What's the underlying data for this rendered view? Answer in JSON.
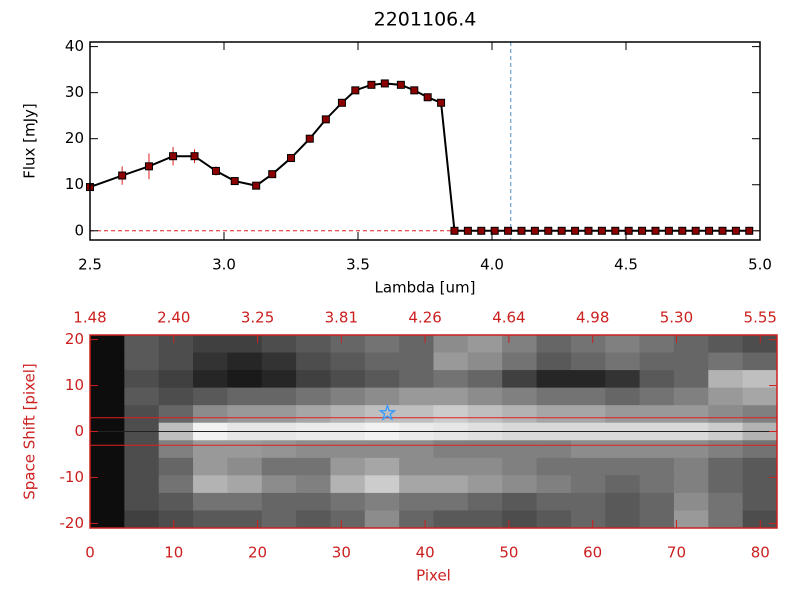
{
  "chart_data": [
    {
      "type": "line",
      "title": "2201106.4",
      "xlabel": "Lambda [um]",
      "ylabel": "Flux [mJy]",
      "xlim": [
        2.5,
        5.0
      ],
      "ylim": [
        -2,
        41
      ],
      "xticks": [
        2.5,
        {
          "value": 3,
          "label": "3.0"
        },
        3.5,
        {
          "value": 4,
          "label": "4.0"
        },
        4.5,
        {
          "value": 5,
          "label": "5.0"
        }
      ],
      "yticks": [
        0,
        10,
        20,
        30,
        40
      ],
      "axis_color": "#000000",
      "series": [
        {
          "color": "#000000",
          "marker_color": "#8b0000",
          "error_color": "#e02020",
          "x": [
            2.5,
            2.62,
            2.72,
            2.81,
            2.89,
            2.97,
            3.04,
            3.12,
            3.18,
            3.25,
            3.32,
            3.38,
            3.44,
            3.49,
            3.55,
            3.6,
            3.66,
            3.71,
            3.76,
            3.81,
            3.86,
            3.91,
            3.96,
            4.01,
            4.06,
            4.11,
            4.16,
            4.21,
            4.26,
            4.31,
            4.36,
            4.41,
            4.46,
            4.51,
            4.56,
            4.61,
            4.66,
            4.71,
            4.76,
            4.81,
            4.86,
            4.91,
            4.96
          ],
          "values": [
            9.5,
            12,
            14,
            16.2,
            16.2,
            13,
            10.8,
            9.8,
            12.3,
            15.8,
            20,
            24.2,
            27.8,
            30.5,
            31.7,
            32,
            31.7,
            30.5,
            29,
            27.8,
            0,
            0,
            0,
            0,
            0,
            0,
            0,
            0,
            0,
            0,
            0,
            0,
            0,
            0,
            0,
            0,
            0,
            0,
            0,
            0,
            0,
            0,
            0
          ],
          "errors": [
            0.8,
            2,
            2.8,
            2,
            1.5,
            1,
            0.6,
            0.6,
            0.8,
            0.8,
            0.8,
            0.8,
            0.6,
            0.6,
            0.6,
            0.6,
            0.6,
            0.6,
            0.6,
            0.6,
            0,
            0,
            0,
            0,
            0,
            0,
            0,
            0,
            0,
            0,
            0,
            0,
            0,
            0,
            0,
            0,
            0,
            0,
            0,
            0,
            0,
            0,
            0
          ]
        }
      ],
      "hlines": [
        {
          "value": 0,
          "color": "#e02020"
        }
      ],
      "vlines": [
        {
          "value": 4.07,
          "color": "#4a90c8"
        }
      ]
    },
    {
      "type": "image",
      "xlabel": "Pixel",
      "ylabel": "Space Shift [pixel]",
      "xlim": [
        0,
        82
      ],
      "ylim": [
        -21,
        21
      ],
      "xticks": [
        0,
        10,
        20,
        30,
        40,
        50,
        60,
        70,
        80
      ],
      "x2ticks": [
        {
          "value": 0,
          "label": "1.48"
        },
        {
          "value": 10,
          "label": "2.40"
        },
        {
          "value": 20,
          "label": "3.25"
        },
        {
          "value": 30,
          "label": "3.81"
        },
        {
          "value": 40,
          "label": "4.26"
        },
        {
          "value": 50,
          "label": "4.64"
        },
        {
          "value": 60,
          "label": "4.98"
        },
        {
          "value": 70,
          "label": "5.30"
        },
        {
          "value": 80,
          "label": "5.55"
        }
      ],
      "yticks": [
        -20,
        -10,
        0,
        10,
        20
      ],
      "axis_color": "#cc2020",
      "z": [
        [
          5,
          35,
          30,
          25,
          25,
          30,
          35,
          40,
          45,
          40,
          55,
          60,
          50,
          40,
          45,
          50,
          45,
          40,
          35,
          30
        ],
        [
          5,
          35,
          30,
          20,
          15,
          20,
          30,
          35,
          40,
          40,
          60,
          55,
          45,
          35,
          40,
          45,
          40,
          40,
          45,
          40
        ],
        [
          5,
          30,
          25,
          15,
          10,
          15,
          25,
          30,
          35,
          40,
          45,
          40,
          25,
          15,
          15,
          20,
          35,
          40,
          70,
          75
        ],
        [
          5,
          35,
          30,
          35,
          40,
          40,
          45,
          50,
          55,
          60,
          60,
          55,
          50,
          45,
          45,
          40,
          45,
          50,
          60,
          65
        ],
        [
          5,
          30,
          40,
          55,
          60,
          60,
          65,
          70,
          75,
          75,
          80,
          75,
          70,
          65,
          65,
          60,
          60,
          60,
          55,
          50
        ],
        [
          5,
          30,
          75,
          95,
          90,
          90,
          92,
          92,
          95,
          92,
          90,
          88,
          85,
          85,
          85,
          85,
          85,
          85,
          80,
          70
        ],
        [
          5,
          30,
          50,
          60,
          60,
          58,
          55,
          55,
          55,
          55,
          50,
          50,
          50,
          50,
          55,
          55,
          55,
          55,
          50,
          45
        ],
        [
          5,
          30,
          40,
          60,
          55,
          45,
          45,
          60,
          65,
          55,
          55,
          55,
          50,
          45,
          45,
          45,
          45,
          50,
          40,
          35
        ],
        [
          5,
          30,
          45,
          70,
          65,
          55,
          50,
          70,
          80,
          65,
          65,
          60,
          55,
          50,
          45,
          40,
          45,
          50,
          40,
          35
        ],
        [
          5,
          30,
          35,
          45,
          45,
          40,
          40,
          45,
          50,
          45,
          45,
          40,
          35,
          40,
          40,
          35,
          40,
          55,
          45,
          35
        ],
        [
          5,
          25,
          30,
          35,
          35,
          40,
          35,
          40,
          55,
          40,
          35,
          35,
          30,
          35,
          40,
          35,
          40,
          60,
          45,
          30
        ]
      ],
      "hlines": [
        {
          "value": 3,
          "color": "#e02020"
        },
        {
          "value": -3,
          "color": "#e02020"
        },
        {
          "value": 0,
          "color": "#222222"
        }
      ],
      "star": {
        "x": 35.5,
        "y": 4,
        "color": "#3399ff"
      }
    }
  ]
}
